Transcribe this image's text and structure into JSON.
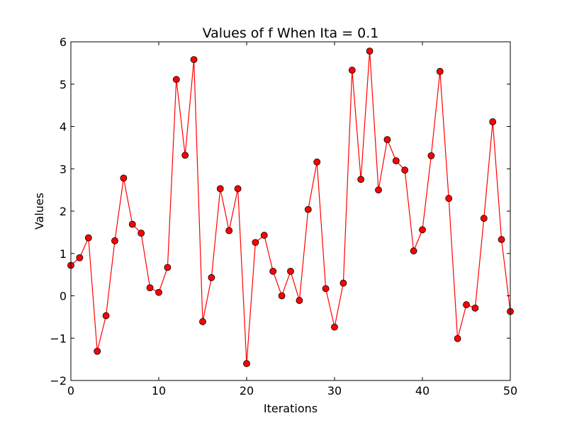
{
  "chart_data": {
    "type": "line",
    "title": "Values of f When Ita = 0.1",
    "xlabel": "Iterations",
    "ylabel": "Values",
    "xlim": [
      0,
      50
    ],
    "ylim": [
      -2,
      6
    ],
    "xticks": [
      0,
      10,
      20,
      30,
      40,
      50
    ],
    "yticks": [
      -2,
      -1,
      0,
      1,
      2,
      3,
      4,
      5,
      6
    ],
    "ytick_labels": [
      "−2",
      "−1",
      "0",
      "1",
      "2",
      "3",
      "4",
      "5",
      "6"
    ],
    "grid": false,
    "line_color": "#ff0000",
    "marker_color": "#ff0000",
    "marker_edge_color": "#000000",
    "series": [
      {
        "x": [
          0,
          1,
          2,
          3,
          4,
          5,
          6,
          7,
          8,
          9,
          10,
          11,
          12,
          13,
          14,
          15,
          16,
          17,
          18,
          19,
          20,
          21,
          22,
          23,
          24,
          25,
          26,
          27,
          28,
          29,
          30,
          31,
          32,
          33,
          34,
          35,
          36,
          37,
          38,
          39,
          40,
          41,
          42,
          43,
          44,
          45,
          46,
          47,
          48,
          49,
          50
        ],
        "values": [
          0.72,
          0.9,
          1.37,
          -1.31,
          -0.47,
          1.3,
          2.78,
          1.69,
          1.48,
          0.19,
          0.08,
          0.67,
          5.11,
          3.32,
          5.58,
          -0.61,
          0.43,
          2.53,
          1.54,
          2.53,
          -1.6,
          1.26,
          1.43,
          0.58,
          0.0,
          0.58,
          -0.11,
          2.04,
          3.16,
          0.17,
          -0.74,
          0.3,
          5.33,
          2.75,
          5.78,
          2.5,
          3.69,
          3.19,
          2.97,
          1.06,
          1.56,
          3.31,
          5.3,
          2.3,
          -1.01,
          -0.21,
          -0.29,
          1.83,
          4.11,
          1.33,
          -0.37
        ]
      }
    ]
  }
}
